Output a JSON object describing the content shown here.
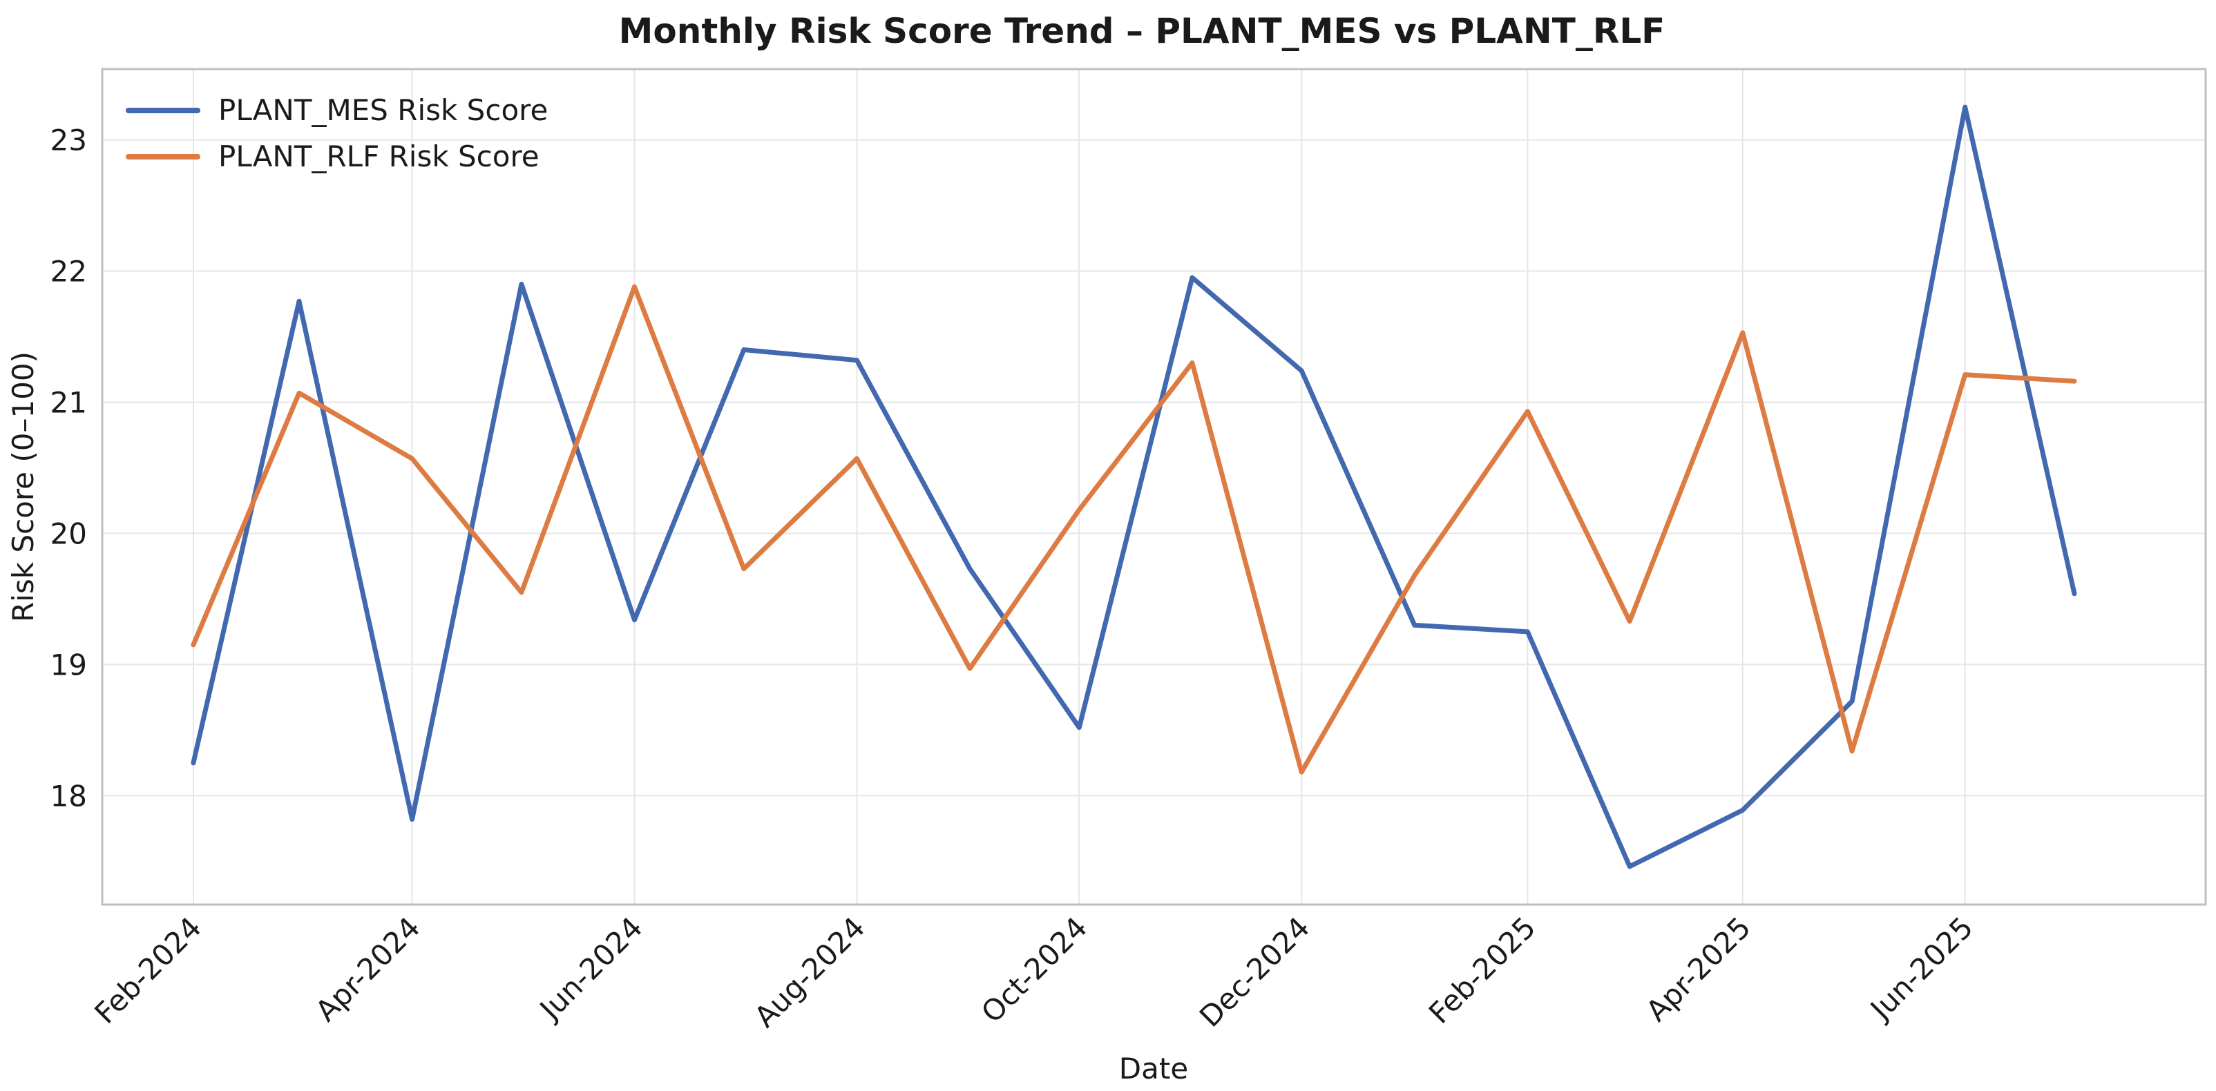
{
  "chart_data": {
    "type": "line",
    "title": "Monthly Risk Score Trend – PLANT_MES vs PLANT_RLF",
    "xlabel": "Date",
    "ylabel": "Risk Score (0–100)",
    "x": [
      "2024-02-01",
      "2024-03-01",
      "2024-04-01",
      "2024-05-01",
      "2024-06-01",
      "2024-07-01",
      "2024-08-01",
      "2024-09-01",
      "2024-10-01",
      "2024-11-01",
      "2024-12-01",
      "2025-01-01",
      "2025-02-01",
      "2025-03-01",
      "2025-04-01",
      "2025-05-01",
      "2025-06-01",
      "2025-07-01"
    ],
    "x_ticks": [
      "Feb-2024",
      "Apr-2024",
      "Jun-2024",
      "Aug-2024",
      "Oct-2024",
      "Dec-2024",
      "Feb-2025",
      "Apr-2025",
      "Jun-2025"
    ],
    "xlim": [
      "2024-01-07",
      "2025-08-06"
    ],
    "ylim": [
      17.17,
      23.54
    ],
    "y_ticks": [
      18,
      19,
      20,
      21,
      22,
      23
    ],
    "grid": true,
    "legend_position": "top-left",
    "series": [
      {
        "name": "PLANT_MES Risk Score",
        "color": "#4269b0",
        "values": [
          18.25,
          21.77,
          17.82,
          21.9,
          19.34,
          21.4,
          21.32,
          19.73,
          18.52,
          21.95,
          21.24,
          19.3,
          19.25,
          17.46,
          17.89,
          18.72,
          23.25,
          19.54
        ]
      },
      {
        "name": "PLANT_RLF Risk Score",
        "color": "#dd7b43",
        "values": [
          19.15,
          21.07,
          20.57,
          19.55,
          21.88,
          19.73,
          20.57,
          18.97,
          20.18,
          21.3,
          18.18,
          19.68,
          20.93,
          19.33,
          21.53,
          18.34,
          21.21,
          21.16
        ]
      }
    ]
  }
}
